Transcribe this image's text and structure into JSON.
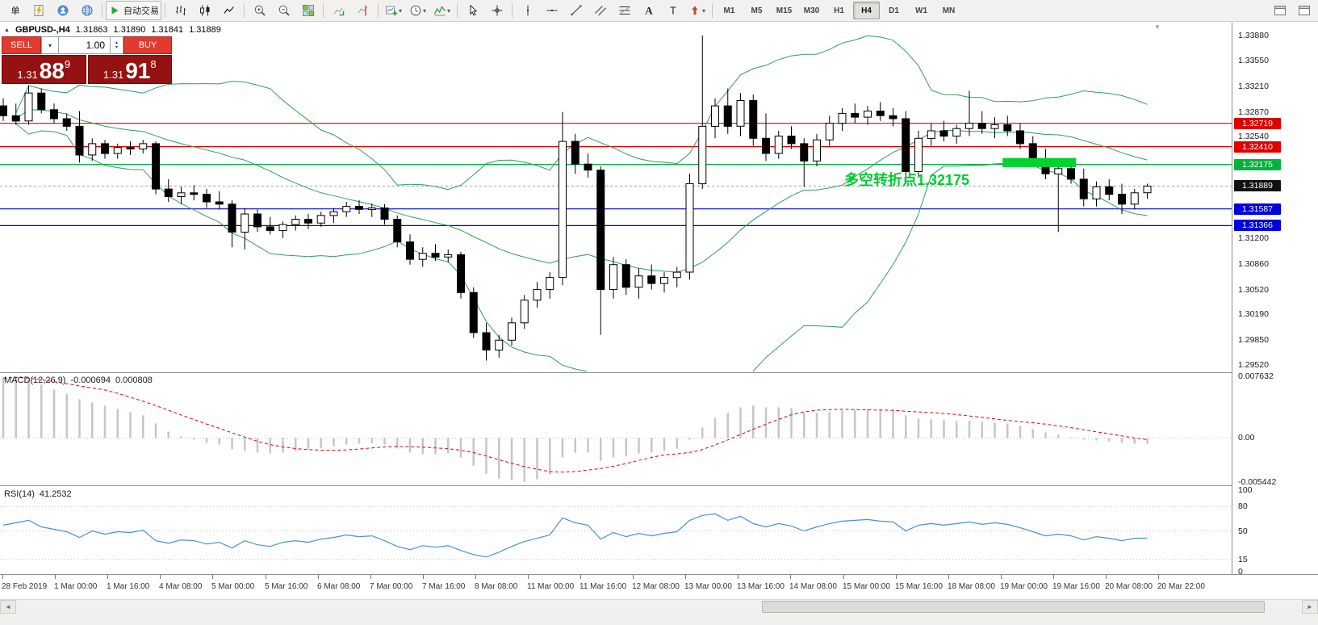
{
  "glyphs": {
    "pane_marker": "▲",
    "caret_down": "▾",
    "spin_up": "▴",
    "spin_down": "▾",
    "shift_marker": "▼",
    "scroll_left": "◄",
    "scroll_right": "►"
  },
  "toolbar": {
    "items": [
      {
        "type": "button",
        "name": "order-menu-button",
        "label": "单"
      },
      {
        "type": "button",
        "name": "new-order-button",
        "icon": "order-icon"
      },
      {
        "type": "button",
        "name": "profile-button",
        "icon": "profile-icon"
      },
      {
        "type": "button",
        "name": "community-button",
        "icon": "globe-icon"
      },
      {
        "type": "sep"
      },
      {
        "type": "button",
        "name": "autotrading-button",
        "icon": "play-icon",
        "label": "自动交易",
        "bordered": true
      },
      {
        "type": "sep"
      },
      {
        "type": "button",
        "name": "bar-chart-mode-button",
        "icon": "bars-icon"
      },
      {
        "type": "button",
        "name": "candlestick-mode-button",
        "icon": "candles-icon"
      },
      {
        "type": "button",
        "name": "line-chart-mode-button",
        "icon": "line-chart-icon"
      },
      {
        "type": "sep"
      },
      {
        "type": "button",
        "name": "zoom-in-button",
        "icon": "zoom-in-icon"
      },
      {
        "type": "button",
        "name": "zoom-out-button",
        "icon": "zoom-out-icon"
      },
      {
        "type": "button",
        "name": "tile-windows-button",
        "icon": "tile-windows-icon"
      },
      {
        "type": "sep"
      },
      {
        "type": "button",
        "name": "auto-scroll-button",
        "icon": "auto-scroll-icon"
      },
      {
        "type": "button",
        "name": "chart-shift-button",
        "icon": "chart-shift-icon"
      },
      {
        "type": "sep"
      },
      {
        "type": "button",
        "name": "new-chart-button",
        "icon": "new-chart-icon",
        "caret": true
      },
      {
        "type": "button",
        "name": "periods-button",
        "icon": "clock-icon",
        "caret": true
      },
      {
        "type": "button",
        "name": "indicators-button",
        "icon": "indicators-icon",
        "caret": true
      },
      {
        "type": "sep"
      },
      {
        "type": "button",
        "name": "cursor-tool-button",
        "icon": "cursor-icon"
      },
      {
        "type": "button",
        "name": "crosshair-tool-button",
        "icon": "crosshair-icon"
      },
      {
        "type": "sep"
      },
      {
        "type": "button",
        "name": "vertical-line-tool-button",
        "icon": "vline-icon"
      },
      {
        "type": "button",
        "name": "horizontal-line-tool-button",
        "icon": "hline-icon"
      },
      {
        "type": "button",
        "name": "trendline-tool-button",
        "icon": "trendline-icon"
      },
      {
        "type": "button",
        "name": "channel-tool-button",
        "icon": "channel-icon"
      },
      {
        "type": "button",
        "name": "fibonacci-tool-button",
        "icon": "fibonacci-icon"
      },
      {
        "type": "button",
        "name": "text-tool-button",
        "icon": "text-a-icon"
      },
      {
        "type": "button",
        "name": "label-tool-button",
        "icon": "label-t-icon"
      },
      {
        "type": "button",
        "name": "arrows-tool-button",
        "icon": "arrow-icon",
        "caret": true
      },
      {
        "type": "sep"
      },
      {
        "type": "timeframes"
      },
      {
        "type": "spacer"
      },
      {
        "type": "button",
        "name": "window-list-button",
        "icon": "window-icon"
      },
      {
        "type": "button",
        "name": "workspace-button",
        "icon": "window-icon"
      }
    ],
    "timeframes": [
      "M1",
      "M5",
      "M15",
      "M30",
      "H1",
      "H4",
      "D1",
      "W1",
      "MN"
    ],
    "active_timeframe": "H4"
  },
  "chart": {
    "symbol_title": "GBPUSD-,H4",
    "ohlc": {
      "open": "1.31863",
      "high": "1.31890",
      "low": "1.31841",
      "close": "1.31889"
    },
    "trade_panel": {
      "sell_label": "SELL",
      "buy_label": "BUY",
      "volume": "1.00",
      "sell_price": {
        "prefix": "1.31",
        "big": "88",
        "sup": "9"
      },
      "buy_price": {
        "prefix": "1.31",
        "big": "91",
        "sup": "8"
      }
    },
    "annotation": {
      "text": "多空转折点1.32175",
      "color": "#00cc33"
    },
    "hlines": [
      {
        "label": "1.32719",
        "color": "#e00000"
      },
      {
        "label": "1.32410",
        "color": "#e00000"
      },
      {
        "label": "1.32175",
        "color": "#00b43c"
      },
      {
        "label": "1.31587",
        "color": "#0000e0"
      },
      {
        "label": "1.31366",
        "color": "#0000e0"
      }
    ],
    "current_price": {
      "label": "1.31889",
      "color": "#111111"
    },
    "highlight": {
      "from_candle": 79,
      "to_candle": 84,
      "price_top": 1.3226,
      "price_bottom": 1.3214,
      "color": "#00d22f"
    },
    "price_axis": {
      "ticks": [
        "1.33880",
        "1.33550",
        "1.33210",
        "1.32870",
        "1.32540",
        "1.31200",
        "1.30860",
        "1.30520",
        "1.30190",
        "1.29850",
        "1.29520"
      ]
    }
  },
  "macd_panel": {
    "label": "MACD(12,26,9)",
    "value_main": "-0.000694",
    "value_signal": "0.000808",
    "scale": [
      "0.007632",
      "0.00",
      "-0.005442"
    ]
  },
  "rsi_panel": {
    "label": "RSI(14)",
    "value": "41.2532",
    "scale": [
      "100",
      "80",
      "50",
      "15",
      "0"
    ],
    "levels": [
      80,
      50,
      15
    ]
  },
  "time_axis": {
    "labels": [
      "28 Feb 2019",
      "1 Mar 00:00",
      "1 Mar 16:00",
      "4 Mar 08:00",
      "5 Mar 00:00",
      "5 Mar 16:00",
      "6 Mar 08:00",
      "7 Mar 00:00",
      "7 Mar 16:00",
      "8 Mar 08:00",
      "11 Mar 00:00",
      "11 Mar 16:00",
      "12 Mar 08:00",
      "13 Mar 00:00",
      "13 Mar 16:00",
      "14 Mar 08:00",
      "15 Mar 00:00",
      "15 Mar 16:00",
      "18 Mar 08:00",
      "19 Mar 00:00",
      "19 Mar 16:00",
      "20 Mar 08:00",
      "20 Mar 22:00"
    ]
  },
  "colors": {
    "bull": "#ffffff",
    "bear": "#000000",
    "wick": "#000000",
    "bollinger": "#2e9e5b",
    "macd_hist": "#c6c6c6",
    "macd_signal": "#e00000",
    "rsi": "#4a90d9",
    "grid_dotted": "#bdbdbd",
    "bid_line": "#a0a0a0"
  },
  "chart_data": {
    "type": "candlestick",
    "symbol": "GBPUSD-",
    "timeframe": "H4",
    "indicators": [
      "Bollinger Bands(20,2)",
      "MACD(12,26,9)",
      "RSI(14)"
    ],
    "price_range": {
      "min": 1.29437,
      "max": 1.34051
    },
    "macd_range": {
      "min": -0.00584,
      "max": 0.00803
    },
    "bollinger": {
      "period": 20,
      "dev": 2
    },
    "candles": [
      [
        1.3295,
        1.3305,
        1.3275,
        1.3282
      ],
      [
        1.3282,
        1.3298,
        1.327,
        1.3275
      ],
      [
        1.3275,
        1.3322,
        1.327,
        1.3312
      ],
      [
        1.3312,
        1.3318,
        1.3285,
        1.329
      ],
      [
        1.329,
        1.3298,
        1.3272,
        1.3278
      ],
      [
        1.3278,
        1.3285,
        1.3262,
        1.3268
      ],
      [
        1.3268,
        1.3288,
        1.322,
        1.323
      ],
      [
        1.323,
        1.3252,
        1.3222,
        1.3245
      ],
      [
        1.3245,
        1.325,
        1.3225,
        1.3232
      ],
      [
        1.3232,
        1.3245,
        1.3225,
        1.324
      ],
      [
        1.324,
        1.3248,
        1.323,
        1.3238
      ],
      [
        1.3238,
        1.325,
        1.3232,
        1.3245
      ],
      [
        1.3245,
        1.3248,
        1.3178,
        1.3185
      ],
      [
        1.3185,
        1.3198,
        1.3168,
        1.3175
      ],
      [
        1.3175,
        1.3188,
        1.3165,
        1.318
      ],
      [
        1.318,
        1.319,
        1.317,
        1.3178
      ],
      [
        1.3178,
        1.3185,
        1.316,
        1.3168
      ],
      [
        1.3168,
        1.3182,
        1.3158,
        1.3165
      ],
      [
        1.3165,
        1.317,
        1.3108,
        1.3128
      ],
      [
        1.3128,
        1.316,
        1.3105,
        1.3152
      ],
      [
        1.3152,
        1.3158,
        1.3128,
        1.3135
      ],
      [
        1.3135,
        1.3148,
        1.3125,
        1.313
      ],
      [
        1.313,
        1.3142,
        1.312,
        1.3138
      ],
      [
        1.3138,
        1.315,
        1.313,
        1.3145
      ],
      [
        1.3145,
        1.3152,
        1.3132,
        1.314
      ],
      [
        1.314,
        1.3155,
        1.3135,
        1.315
      ],
      [
        1.315,
        1.316,
        1.314,
        1.3155
      ],
      [
        1.3155,
        1.3168,
        1.3148,
        1.3162
      ],
      [
        1.3162,
        1.317,
        1.3152,
        1.3158
      ],
      [
        1.3158,
        1.3166,
        1.3148,
        1.316
      ],
      [
        1.316,
        1.3165,
        1.3138,
        1.3145
      ],
      [
        1.3145,
        1.315,
        1.3108,
        1.3115
      ],
      [
        1.3115,
        1.3125,
        1.3085,
        1.3092
      ],
      [
        1.3092,
        1.3108,
        1.3082,
        1.31
      ],
      [
        1.31,
        1.3112,
        1.309,
        1.3095
      ],
      [
        1.3095,
        1.3105,
        1.3088,
        1.3098
      ],
      [
        1.3098,
        1.3102,
        1.304,
        1.3048
      ],
      [
        1.3048,
        1.3055,
        1.2988,
        1.2995
      ],
      [
        1.2995,
        1.3008,
        1.2958,
        1.2972
      ],
      [
        1.2972,
        1.2992,
        1.2962,
        1.2985
      ],
      [
        1.2985,
        1.3015,
        1.2978,
        1.3008
      ],
      [
        1.3008,
        1.3045,
        1.3,
        1.3038
      ],
      [
        1.3038,
        1.3062,
        1.3028,
        1.3052
      ],
      [
        1.3052,
        1.3075,
        1.304,
        1.3068
      ],
      [
        1.3068,
        1.3287,
        1.3058,
        1.3248
      ],
      [
        1.3248,
        1.3258,
        1.3205,
        1.3218
      ],
      [
        1.3218,
        1.3232,
        1.32,
        1.321
      ],
      [
        1.321,
        1.3215,
        1.2992,
        1.3052
      ],
      [
        1.3052,
        1.3095,
        1.304,
        1.3085
      ],
      [
        1.3085,
        1.3092,
        1.3045,
        1.3055
      ],
      [
        1.3055,
        1.308,
        1.304,
        1.307
      ],
      [
        1.307,
        1.3085,
        1.3052,
        1.306
      ],
      [
        1.306,
        1.3075,
        1.3048,
        1.3068
      ],
      [
        1.3068,
        1.3082,
        1.3055,
        1.3075
      ],
      [
        1.3075,
        1.3205,
        1.3065,
        1.3192
      ],
      [
        1.3192,
        1.3388,
        1.3185,
        1.3268
      ],
      [
        1.3268,
        1.3305,
        1.3252,
        1.3295
      ],
      [
        1.3295,
        1.3318,
        1.3258,
        1.3268
      ],
      [
        1.3268,
        1.3312,
        1.3255,
        1.3302
      ],
      [
        1.3302,
        1.331,
        1.3242,
        1.3252
      ],
      [
        1.3252,
        1.3285,
        1.3222,
        1.3232
      ],
      [
        1.3232,
        1.3262,
        1.3225,
        1.3255
      ],
      [
        1.3255,
        1.3268,
        1.3238,
        1.3245
      ],
      [
        1.3245,
        1.3252,
        1.3188,
        1.3222
      ],
      [
        1.3222,
        1.3258,
        1.3215,
        1.325
      ],
      [
        1.325,
        1.3282,
        1.3242,
        1.3272
      ],
      [
        1.3272,
        1.3292,
        1.3262,
        1.3285
      ],
      [
        1.3285,
        1.3298,
        1.3272,
        1.328
      ],
      [
        1.328,
        1.3295,
        1.327,
        1.3288
      ],
      [
        1.3288,
        1.33,
        1.3275,
        1.3282
      ],
      [
        1.3282,
        1.3292,
        1.3268,
        1.3278
      ],
      [
        1.3278,
        1.3288,
        1.3192,
        1.3208
      ],
      [
        1.3208,
        1.3262,
        1.32,
        1.3252
      ],
      [
        1.3252,
        1.3272,
        1.3242,
        1.3262
      ],
      [
        1.3262,
        1.3275,
        1.3248,
        1.3255
      ],
      [
        1.3255,
        1.327,
        1.3245,
        1.3265
      ],
      [
        1.3265,
        1.3315,
        1.3255,
        1.3272
      ],
      [
        1.3272,
        1.3288,
        1.3258,
        1.3265
      ],
      [
        1.3265,
        1.328,
        1.3252,
        1.327
      ],
      [
        1.327,
        1.3282,
        1.3255,
        1.3262
      ],
      [
        1.3262,
        1.3272,
        1.3238,
        1.3245
      ],
      [
        1.3245,
        1.3255,
        1.3218,
        1.3225
      ],
      [
        1.3225,
        1.3238,
        1.3198,
        1.3205
      ],
      [
        1.3205,
        1.3222,
        1.3128,
        1.3212
      ],
      [
        1.3212,
        1.3222,
        1.3192,
        1.3198
      ],
      [
        1.3198,
        1.3212,
        1.3162,
        1.3172
      ],
      [
        1.3172,
        1.3195,
        1.3162,
        1.3188
      ],
      [
        1.3188,
        1.3198,
        1.317,
        1.3178
      ],
      [
        1.3178,
        1.3192,
        1.3152,
        1.3165
      ],
      [
        1.3165,
        1.3185,
        1.3158,
        1.318
      ],
      [
        1.318,
        1.3192,
        1.3172,
        1.31889
      ]
    ],
    "macd_histogram": [
      0.0074,
      0.0076,
      0.0072,
      0.0066,
      0.006,
      0.0055,
      0.0048,
      0.0044,
      0.004,
      0.0036,
      0.0032,
      0.0028,
      0.0018,
      0.0008,
      0.0002,
      -0.0002,
      -0.0006,
      -0.0008,
      -0.0014,
      -0.0016,
      -0.0018,
      -0.0019,
      -0.0018,
      -0.0016,
      -0.0014,
      -0.0012,
      -0.001,
      -0.0008,
      -0.0007,
      -0.0006,
      -0.0008,
      -0.0013,
      -0.0018,
      -0.002,
      -0.002,
      -0.0019,
      -0.0024,
      -0.0034,
      -0.0044,
      -0.005,
      -0.0052,
      -0.0054,
      -0.0051,
      -0.0045,
      -0.0024,
      -0.0018,
      -0.0018,
      -0.0028,
      -0.0024,
      -0.0022,
      -0.0019,
      -0.0018,
      -0.0016,
      -0.0013,
      -0.0002,
      0.0013,
      0.0025,
      0.0031,
      0.0038,
      0.004,
      0.0038,
      0.0038,
      0.0037,
      0.0032,
      0.0031,
      0.0032,
      0.0034,
      0.0035,
      0.0036,
      0.0036,
      0.0035,
      0.0028,
      0.0024,
      0.0023,
      0.0022,
      0.0021,
      0.0021,
      0.002,
      0.0019,
      0.0018,
      0.0015,
      0.0011,
      0.0007,
      0.0004,
      0.0001,
      -0.0002,
      -0.0003,
      -0.0004,
      -0.0006,
      -0.0007,
      -0.000694
    ],
    "rsi_values": [
      57,
      60,
      63,
      55,
      52,
      49,
      42,
      50,
      46,
      49,
      48,
      51,
      38,
      35,
      39,
      38,
      34,
      36,
      29,
      38,
      33,
      31,
      36,
      38,
      36,
      40,
      42,
      45,
      43,
      44,
      38,
      31,
      27,
      32,
      30,
      32,
      26,
      21,
      18,
      24,
      31,
      37,
      41,
      45,
      66,
      60,
      57,
      40,
      48,
      43,
      47,
      44,
      47,
      49,
      63,
      69,
      71,
      63,
      68,
      59,
      55,
      59,
      56,
      50,
      55,
      59,
      62,
      63,
      64,
      62,
      61,
      50,
      57,
      59,
      57,
      59,
      61,
      58,
      60,
      58,
      54,
      49,
      44,
      46,
      44,
      39,
      43,
      41,
      38,
      41,
      41.25
    ]
  },
  "scrollbar": {
    "left_arrow": "◄",
    "right_arrow": "►"
  }
}
